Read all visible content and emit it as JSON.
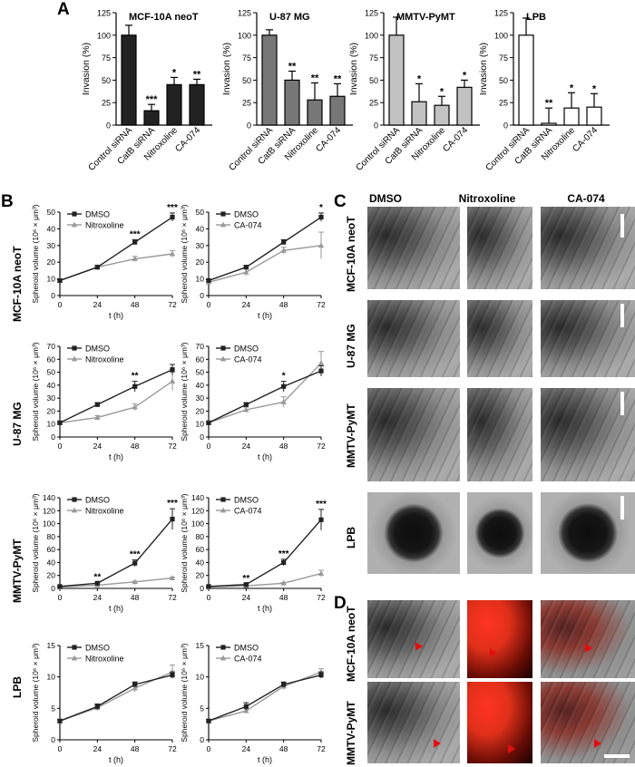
{
  "panels": {
    "A": "A",
    "B": "B",
    "C": "C",
    "D": "D"
  },
  "colors": {
    "black": "#222222",
    "darkgray": "#666666",
    "lightgray": "#bdbdbd",
    "white": "#ffffff",
    "line_gray": "#999999"
  },
  "barcharts": [
    {
      "title": "MCF-10A neoT",
      "ylabel": "Invasion (%)",
      "fill": "#222222",
      "categories": [
        "Control siRNA",
        "CatB siRNA",
        "Nitroxoline",
        "CA-074"
      ],
      "values": [
        100,
        16,
        45,
        45
      ],
      "errors": [
        11,
        7,
        8,
        6
      ],
      "sig": [
        "",
        "***",
        "*",
        "**"
      ]
    },
    {
      "title": "U-87 MG",
      "ylabel": "Invasion (%)",
      "fill": "#777777",
      "categories": [
        "Control siRNA",
        "CatB siRNA",
        "Nitroxoline",
        "CA-074"
      ],
      "values": [
        100,
        50,
        28,
        32
      ],
      "errors": [
        6,
        10,
        19,
        14
      ],
      "sig": [
        "",
        "**",
        "**",
        "**"
      ]
    },
    {
      "title": "MMTV-PyMT",
      "ylabel": "Invasion (%)",
      "fill": "#c2c2c2",
      "categories": [
        "Control siRNA",
        "CatB siRNA",
        "Nitroxoline",
        "CA-074"
      ],
      "values": [
        100,
        26,
        22,
        42
      ],
      "errors": [
        20,
        20,
        10,
        8
      ],
      "sig": [
        "",
        "*",
        "*",
        "*"
      ]
    },
    {
      "title": "LPB",
      "ylabel": "Invasion (%)",
      "fill": "#ffffff",
      "categories": [
        "Control siRNA",
        "CatB siRNA",
        "Nitroxoline",
        "CA-074"
      ],
      "values": [
        100,
        2,
        19,
        20
      ],
      "errors": [
        19,
        17,
        17,
        15
      ],
      "sig": [
        "",
        "**",
        "*",
        "*"
      ]
    }
  ],
  "ticks_bar": [
    "0",
    "25",
    "50",
    "75",
    "100",
    "125"
  ],
  "growth": {
    "xlabel": "t (h)",
    "ylabel": "Spheroid volume (10⁶ × μm³)",
    "xticks": [
      "0",
      "24",
      "48",
      "72"
    ],
    "rows": [
      {
        "label": "MCF-10A neoT",
        "yticks": [
          "0",
          "10",
          "20",
          "30",
          "40",
          "50"
        ],
        "ymax": 50,
        "charts": [
          {
            "legend": [
              "DMSO",
              "Nitroxoline"
            ],
            "dmso": [
              9,
              17,
              32,
              47
            ],
            "treat": [
              9,
              17,
              22,
              25
            ],
            "dmso_err": [
              0.5,
              1,
              1.5,
              2.5
            ],
            "treat_err": [
              0.5,
              1,
              1.5,
              2
            ],
            "sig": [
              "",
              "",
              "***",
              "***"
            ]
          },
          {
            "legend": [
              "DMSO",
              "CA-074"
            ],
            "dmso": [
              9,
              17,
              32,
              47
            ],
            "treat": [
              8,
              14,
              27,
              30
            ],
            "dmso_err": [
              0.5,
              1,
              1.5,
              2.5
            ],
            "treat_err": [
              0.5,
              2,
              2,
              8
            ],
            "sig": [
              "",
              "",
              "",
              "*"
            ]
          }
        ]
      },
      {
        "label": "U-87 MG",
        "yticks": [
          "0",
          "10",
          "20",
          "30",
          "40",
          "50",
          "60",
          "70"
        ],
        "ymax": 70,
        "charts": [
          {
            "legend": [
              "DMSO",
              "Nitroxoline"
            ],
            "dmso": [
              11,
              25,
              39,
              52
            ],
            "treat": [
              11,
              15,
              23,
              43
            ],
            "dmso_err": [
              1,
              1.5,
              4,
              4
            ],
            "treat_err": [
              1,
              1.5,
              2.5,
              7
            ],
            "sig": [
              "",
              "",
              "**",
              ""
            ]
          },
          {
            "legend": [
              "DMSO",
              "CA-074"
            ],
            "dmso": [
              11,
              25,
              39,
              51
            ],
            "treat": [
              11,
              21,
              27,
              57
            ],
            "dmso_err": [
              1,
              1.5,
              4,
              4
            ],
            "treat_err": [
              1,
              2,
              4,
              9
            ],
            "sig": [
              "",
              "",
              "*",
              ""
            ]
          }
        ]
      },
      {
        "label": "MMTV-PyMT",
        "yticks": [
          "0",
          "20",
          "40",
          "60",
          "80",
          "100",
          "120",
          "140"
        ],
        "ymax": 140,
        "charts": [
          {
            "legend": [
              "DMSO",
              "Nitroxoline"
            ],
            "dmso": [
              3,
              8,
              39,
              107
            ],
            "treat": [
              2,
              5,
              10,
              16
            ],
            "dmso_err": [
              0.5,
              1,
              5,
              16
            ],
            "treat_err": [
              0.5,
              0.5,
              1,
              1.5
            ],
            "sig": [
              "",
              "**",
              "***",
              "***"
            ]
          },
          {
            "legend": [
              "DMSO",
              "CA-074"
            ],
            "dmso": [
              3,
              6,
              40,
              106
            ],
            "treat": [
              2,
              4,
              8,
              23
            ],
            "dmso_err": [
              0.5,
              1,
              5,
              16
            ],
            "treat_err": [
              0.5,
              0.5,
              1,
              5
            ],
            "sig": [
              "",
              "**",
              "***",
              "***"
            ]
          }
        ]
      },
      {
        "label": "LPB",
        "yticks": [
          "0",
          "5",
          "10",
          "15"
        ],
        "ymax": 15,
        "charts": [
          {
            "legend": [
              "DMSO",
              "Nitroxoline"
            ],
            "dmso": [
              3,
              5.3,
              8.8,
              10.3
            ],
            "treat": [
              3,
              5.1,
              8.2,
              10.8
            ],
            "dmso_err": [
              0.2,
              0.4,
              0.4,
              0.5
            ],
            "treat_err": [
              0.2,
              0.5,
              0.6,
              1.1
            ],
            "sig": [
              "",
              "",
              "",
              ""
            ]
          },
          {
            "legend": [
              "DMSO",
              "CA-074"
            ],
            "dmso": [
              3,
              5.3,
              8.8,
              10.3
            ],
            "treat": [
              3,
              4.6,
              8.5,
              10.8
            ],
            "dmso_err": [
              0.2,
              0.6,
              0.4,
              0.5
            ],
            "treat_err": [
              0.2,
              0.3,
              0.5,
              0.5
            ],
            "sig": [
              "",
              "",
              "",
              ""
            ]
          }
        ]
      }
    ]
  },
  "panelC": {
    "columns": [
      "DMSO",
      "Nitroxoline",
      "CA-074"
    ],
    "rows": [
      "MCF-10A neoT",
      "U-87 MG",
      "MMTV-PyMT",
      "LPB"
    ]
  },
  "panelD": {
    "rows": [
      "MCF-10A neoT",
      "MMTV-PyMT"
    ]
  }
}
